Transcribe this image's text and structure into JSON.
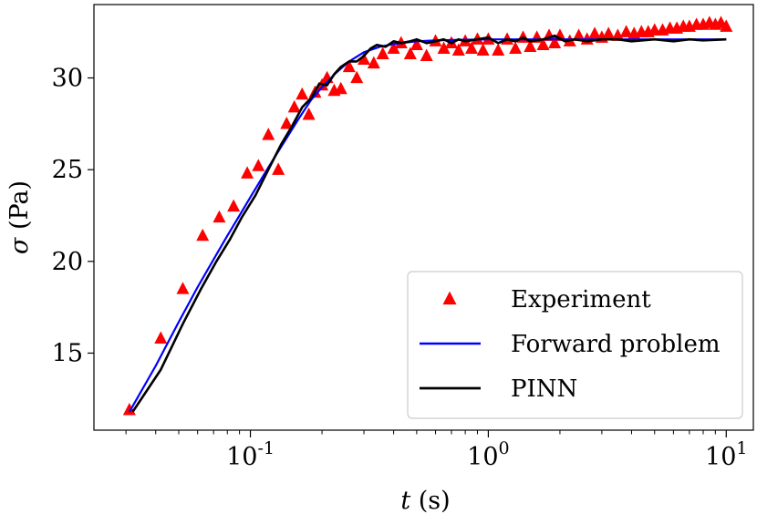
{
  "chart_data": {
    "type": "line",
    "xscale": "log",
    "xlim": [
      0.022,
      13
    ],
    "ylim": [
      10.8,
      34.0
    ],
    "grid": false,
    "legend_position": "lower-right",
    "xlabel": {
      "var": "t",
      "unit": " (s)"
    },
    "ylabel": {
      "var": "σ",
      "unit": " (Pa)"
    },
    "x_ticks": [
      {
        "value": 0.1,
        "base": "10",
        "exp": "-1"
      },
      {
        "value": 1,
        "base": "10",
        "exp": "0"
      },
      {
        "value": 10,
        "base": "10",
        "exp": "1"
      }
    ],
    "y_ticks": [
      15,
      20,
      25,
      30
    ],
    "colors": {
      "experiment": "#ff0000",
      "forward": "#0000ff",
      "pinn": "#000000"
    },
    "legend": [
      "Experiment",
      "Forward problem",
      "PINN"
    ],
    "series": [
      {
        "name": "Experiment",
        "kind": "scatter",
        "x": [
          0.031,
          0.042,
          0.052,
          0.063,
          0.074,
          0.085,
          0.097,
          0.108,
          0.119,
          0.131,
          0.142,
          0.153,
          0.165,
          0.176,
          0.187,
          0.2,
          0.21,
          0.225,
          0.24,
          0.26,
          0.28,
          0.3,
          0.33,
          0.36,
          0.4,
          0.43,
          0.47,
          0.5,
          0.55,
          0.6,
          0.65,
          0.7,
          0.75,
          0.8,
          0.85,
          0.9,
          0.95,
          1.0,
          1.1,
          1.2,
          1.3,
          1.4,
          1.5,
          1.6,
          1.7,
          1.8,
          1.9,
          2.0,
          2.2,
          2.4,
          2.6,
          2.8,
          3.0,
          3.2,
          3.5,
          3.8,
          4.1,
          4.4,
          4.7,
          5.0,
          5.4,
          5.8,
          6.2,
          6.6,
          7.0,
          7.5,
          8.0,
          8.5,
          9.0,
          9.5,
          10.0
        ],
        "y": [
          11.9,
          15.8,
          18.5,
          21.4,
          22.4,
          23.0,
          24.8,
          25.2,
          26.9,
          25.0,
          27.5,
          28.4,
          29.1,
          28.0,
          29.2,
          29.6,
          30.0,
          29.3,
          29.4,
          30.6,
          30.0,
          31.0,
          30.8,
          31.3,
          31.6,
          31.9,
          31.3,
          31.8,
          31.2,
          32.0,
          31.6,
          31.9,
          31.5,
          32.0,
          31.6,
          32.1,
          31.5,
          32.1,
          31.5,
          32.1,
          31.6,
          32.2,
          31.7,
          32.2,
          31.8,
          32.3,
          31.9,
          32.3,
          32.0,
          32.3,
          32.1,
          32.4,
          32.2,
          32.4,
          32.3,
          32.5,
          32.4,
          32.5,
          32.5,
          32.6,
          32.6,
          32.7,
          32.7,
          32.8,
          32.8,
          32.9,
          32.9,
          33.0,
          32.9,
          33.0,
          32.8
        ]
      },
      {
        "name": "Forward problem",
        "kind": "line",
        "x": [
          0.031,
          0.04,
          0.05,
          0.06,
          0.07,
          0.08,
          0.09,
          0.1,
          0.12,
          0.14,
          0.16,
          0.18,
          0.2,
          0.23,
          0.26,
          0.3,
          0.35,
          0.4,
          0.5,
          0.6,
          0.8,
          1.0,
          2.0,
          5.0,
          10.0
        ],
        "y": [
          11.8,
          14.3,
          16.7,
          18.6,
          20.1,
          21.4,
          22.5,
          23.5,
          25.2,
          26.6,
          27.8,
          28.8,
          29.5,
          30.3,
          30.9,
          31.4,
          31.7,
          31.85,
          32.0,
          32.05,
          32.08,
          32.1,
          32.1,
          32.1,
          32.1
        ]
      },
      {
        "name": "PINN",
        "kind": "line",
        "x": [
          0.032,
          0.042,
          0.052,
          0.062,
          0.072,
          0.082,
          0.092,
          0.105,
          0.12,
          0.135,
          0.15,
          0.165,
          0.18,
          0.195,
          0.21,
          0.225,
          0.24,
          0.26,
          0.28,
          0.3,
          0.32,
          0.34,
          0.37,
          0.4,
          0.43,
          0.47,
          0.5,
          0.55,
          0.6,
          0.65,
          0.7,
          0.75,
          0.8,
          0.9,
          1.0,
          1.1,
          1.2,
          1.3,
          1.4,
          1.5,
          1.7,
          1.9,
          2.1,
          2.3,
          2.6,
          3.0,
          3.5,
          4.0,
          5.0,
          6.0,
          7.0,
          8.0,
          10.0
        ],
        "y": [
          11.8,
          14.1,
          16.6,
          18.5,
          20.0,
          21.2,
          22.4,
          23.6,
          25.1,
          26.4,
          27.4,
          28.4,
          28.9,
          29.7,
          29.6,
          30.2,
          30.6,
          30.9,
          30.9,
          31.2,
          31.6,
          31.8,
          31.7,
          32.0,
          31.9,
          32.0,
          32.1,
          31.9,
          32.0,
          32.1,
          31.9,
          32.1,
          32.0,
          32.1,
          32.2,
          31.9,
          32.1,
          32.0,
          32.2,
          32.0,
          32.1,
          32.3,
          32.0,
          32.1,
          32.0,
          32.1,
          32.1,
          32.0,
          32.1,
          32.0,
          32.1,
          32.05,
          32.1
        ]
      }
    ]
  }
}
